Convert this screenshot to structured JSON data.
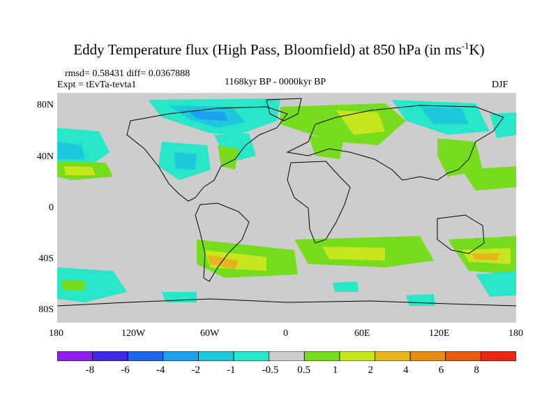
{
  "map": {
    "title_main": "Eddy Temperature flux (High Pass, Bloomfield) at 850 hPa (in ms",
    "title_sup": "-1",
    "title_end": "K)",
    "stats": "rmsd= 0.58431 diff= 0.0367888",
    "experiment": "Expt = tEvTa-tevta1",
    "period": "1168kyr BP - 0000kyr BP",
    "season": "DJF",
    "lat_ticks": [
      "80N",
      "40N",
      "0",
      "40S",
      "80S"
    ],
    "lon_ticks": [
      "180",
      "120W",
      "60W",
      "0",
      "60E",
      "120E",
      "180"
    ],
    "lon_range": [
      -180,
      180
    ],
    "lat_range": [
      -90,
      90
    ],
    "colorbar_labels": [
      "-8",
      "-6",
      "-4",
      "-2",
      "-1",
      "-0.5",
      "0.5",
      "1",
      "2",
      "4",
      "6",
      "8"
    ],
    "colorbar_colors": [
      "#8c1ef0",
      "#3c28e6",
      "#1e64e6",
      "#1ea0f0",
      "#1ec8dc",
      "#28e6c8",
      "#cdcdcd",
      "#78dc1e",
      "#c8e61e",
      "#e6b41e",
      "#e68c14",
      "#e65a0a",
      "#e62814"
    ]
  }
}
